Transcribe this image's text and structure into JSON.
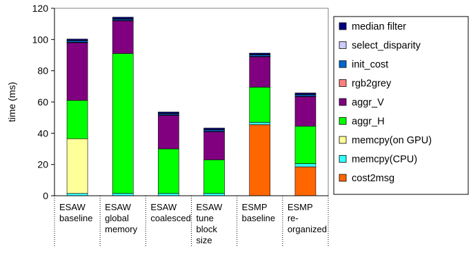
{
  "chart_data": {
    "type": "bar",
    "stacked": true,
    "title": "",
    "xlabel": "",
    "ylabel": "time (ms)",
    "ylim": [
      0,
      120
    ],
    "yticks": [
      0,
      20,
      40,
      60,
      80,
      100,
      120
    ],
    "grid": false,
    "legend_position": "right",
    "categories": [
      [
        "ESAW",
        "baseline"
      ],
      [
        "ESAW",
        "global",
        "memory"
      ],
      [
        "ESAW",
        "coalesced"
      ],
      [
        "ESAW",
        "tune",
        "block",
        "size"
      ],
      [
        "ESMP",
        "baseline"
      ],
      [
        "ESMP",
        "re-",
        "organized"
      ]
    ],
    "series": [
      {
        "name": "cost2msg",
        "color": "#ff6600",
        "values": [
          0,
          0,
          0,
          0,
          45.5,
          18.5
        ]
      },
      {
        "name": "memcpy(CPU)",
        "color": "#33ffff",
        "values": [
          1.5,
          1.5,
          1.5,
          1.5,
          1.5,
          2
        ]
      },
      {
        "name": "memcpy(on GPU)",
        "color": "#ffff99",
        "values": [
          35,
          0,
          0,
          0,
          0,
          0
        ]
      },
      {
        "name": "aggr_H",
        "color": "#00ff00",
        "values": [
          24.5,
          89.5,
          28.5,
          21.5,
          22.5,
          24
        ]
      },
      {
        "name": "aggr_V",
        "color": "#800080",
        "values": [
          37,
          21,
          21.5,
          18,
          19.5,
          19
        ]
      },
      {
        "name": "rgb2grey",
        "color": "#ff8080",
        "values": [
          0.2,
          0.2,
          0.2,
          0.2,
          0.2,
          0.2
        ]
      },
      {
        "name": "init_cost",
        "color": "#0066cc",
        "values": [
          1.0,
          0.8,
          0.8,
          1.0,
          1.0,
          1.0
        ]
      },
      {
        "name": "select_disparity",
        "color": "#ccccff",
        "values": [
          0.3,
          0.3,
          0.3,
          0.3,
          0.3,
          0.3
        ]
      },
      {
        "name": "median filter",
        "color": "#000080",
        "values": [
          0.8,
          1.0,
          0.8,
          0.8,
          0.8,
          0.8
        ]
      }
    ],
    "legend_order": [
      "median filter",
      "select_disparity",
      "init_cost",
      "rgb2grey",
      "aggr_V",
      "aggr_H",
      "memcpy(on GPU)",
      "memcpy(CPU)",
      "cost2msg"
    ]
  }
}
